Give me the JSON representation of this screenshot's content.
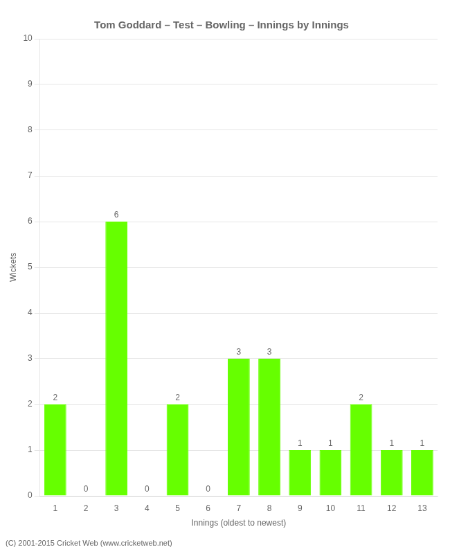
{
  "chart_data": {
    "type": "bar",
    "title": "Tom Goddard – Test – Bowling – Innings by Innings",
    "xlabel": "Innings (oldest to newest)",
    "ylabel": "Wickets",
    "footer": "(C) 2001-2015 Cricket Web (www.cricketweb.net)",
    "categories": [
      "1",
      "2",
      "3",
      "4",
      "5",
      "6",
      "7",
      "8",
      "9",
      "10",
      "11",
      "12",
      "13"
    ],
    "values": [
      2,
      0,
      6,
      0,
      2,
      0,
      3,
      3,
      1,
      1,
      2,
      1,
      1
    ],
    "color": "#66ff00",
    "ylim": [
      0,
      10
    ],
    "yticks": [
      0,
      1,
      2,
      3,
      4,
      5,
      6,
      7,
      8,
      9,
      10
    ],
    "grid": true,
    "data_labels": true
  }
}
